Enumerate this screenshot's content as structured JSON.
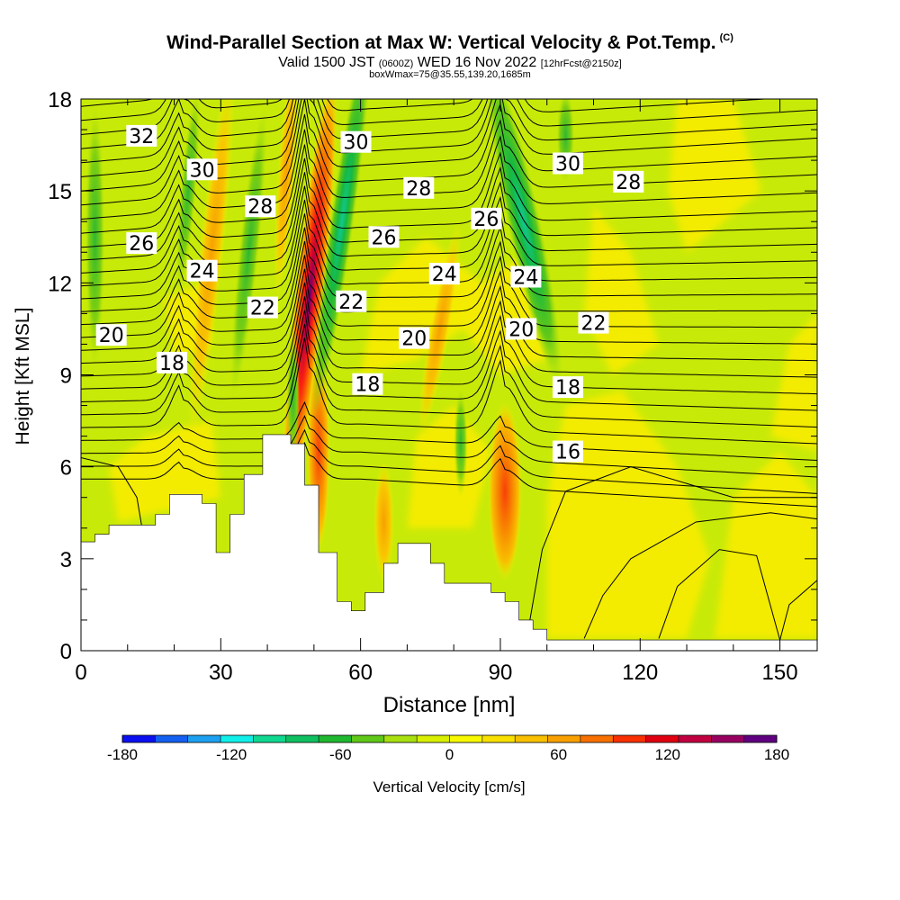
{
  "header": {
    "title": "Wind-Parallel Section at Max W: Vertical Velocity & Pot.Temp.",
    "copyright": "(C)",
    "valid_prefix": "Valid 1500 JST",
    "valid_utc": "(0600Z)",
    "valid_date": "WED 16 Nov 2022",
    "forecast": "[12hrFcst@2150z]",
    "box_info": "boxWmax=75@35.55,139.20,1685m"
  },
  "chart_data": {
    "type": "heatmap",
    "xlabel": "Distance [nm]",
    "ylabel": "Height [Kft MSL]",
    "xlim": [
      0,
      158
    ],
    "ylim": [
      0,
      18
    ],
    "x_ticks": [
      0,
      30,
      60,
      90,
      120,
      150
    ],
    "y_ticks": [
      0,
      3,
      6,
      9,
      12,
      15,
      18
    ],
    "colorbar": {
      "label": "Vertical Velocity [cm/s]",
      "range": [
        -180,
        180
      ],
      "tick_labels": [
        -180,
        -120,
        -60,
        0,
        60,
        120,
        180
      ],
      "colors": [
        "#0a10f0",
        "#1460f0",
        "#1ea0f0",
        "#10f0e8",
        "#10d890",
        "#10c060",
        "#20b830",
        "#60c818",
        "#a8e010",
        "#d8f000",
        "#f8f800",
        "#f8e000",
        "#f8c000",
        "#f8a000",
        "#f87000",
        "#f83000",
        "#e00010",
        "#c00040",
        "#980060",
        "#600080"
      ]
    },
    "theta_contour_labels": [
      {
        "text": "32",
        "x": 13.0,
        "y": 16.8
      },
      {
        "text": "30",
        "x": 26.0,
        "y": 15.7
      },
      {
        "text": "28",
        "x": 38.5,
        "y": 14.5
      },
      {
        "text": "26",
        "x": 13.0,
        "y": 13.3
      },
      {
        "text": "24",
        "x": 26.0,
        "y": 12.4
      },
      {
        "text": "22",
        "x": 39.0,
        "y": 11.2
      },
      {
        "text": "20",
        "x": 6.5,
        "y": 10.3
      },
      {
        "text": "18",
        "x": 19.5,
        "y": 9.4
      },
      {
        "text": "30",
        "x": 59.0,
        "y": 16.6
      },
      {
        "text": "28",
        "x": 72.5,
        "y": 15.1
      },
      {
        "text": "26",
        "x": 65.0,
        "y": 13.5
      },
      {
        "text": "24",
        "x": 78.0,
        "y": 12.3
      },
      {
        "text": "22",
        "x": 58.0,
        "y": 11.4
      },
      {
        "text": "20",
        "x": 71.5,
        "y": 10.2
      },
      {
        "text": "18",
        "x": 61.5,
        "y": 8.7
      },
      {
        "text": "26",
        "x": 87.0,
        "y": 14.1
      },
      {
        "text": "24",
        "x": 95.5,
        "y": 12.2
      },
      {
        "text": "20",
        "x": 94.5,
        "y": 10.5
      },
      {
        "text": "30",
        "x": 104.5,
        "y": 15.9
      },
      {
        "text": "28",
        "x": 117.5,
        "y": 15.3
      },
      {
        "text": "22",
        "x": 110.0,
        "y": 10.7
      },
      {
        "text": "18",
        "x": 104.5,
        "y": 8.6
      },
      {
        "text": "16",
        "x": 104.5,
        "y": 6.5
      }
    ],
    "terrain_profile": [
      [
        0,
        3.55
      ],
      [
        3,
        3.55
      ],
      [
        3,
        3.8
      ],
      [
        6,
        3.8
      ],
      [
        6,
        4.1
      ],
      [
        16,
        4.1
      ],
      [
        16,
        4.45
      ],
      [
        19,
        4.45
      ],
      [
        19,
        5.1
      ],
      [
        26,
        5.1
      ],
      [
        26,
        4.8
      ],
      [
        29,
        4.8
      ],
      [
        29,
        3.2
      ],
      [
        32,
        3.2
      ],
      [
        32,
        4.45
      ],
      [
        35,
        4.45
      ],
      [
        35,
        5.75
      ],
      [
        39,
        5.75
      ],
      [
        39,
        7.05
      ],
      [
        45,
        7.05
      ],
      [
        45,
        6.75
      ],
      [
        48,
        6.75
      ],
      [
        48,
        5.4
      ],
      [
        51,
        5.4
      ],
      [
        51,
        3.2
      ],
      [
        55,
        3.2
      ],
      [
        55,
        1.6
      ],
      [
        58,
        1.6
      ],
      [
        58,
        1.3
      ],
      [
        61,
        1.3
      ],
      [
        61,
        1.9
      ],
      [
        65,
        1.9
      ],
      [
        65,
        2.85
      ],
      [
        68,
        2.85
      ],
      [
        68,
        3.5
      ],
      [
        75,
        3.5
      ],
      [
        75,
        2.85
      ],
      [
        78,
        2.85
      ],
      [
        78,
        2.2
      ],
      [
        88,
        2.2
      ],
      [
        88,
        1.9
      ],
      [
        91,
        1.9
      ],
      [
        91,
        1.6
      ],
      [
        94,
        1.6
      ],
      [
        94,
        1.0
      ],
      [
        97,
        1.0
      ],
      [
        97,
        0.7
      ],
      [
        100,
        0.7
      ],
      [
        100,
        0.35
      ],
      [
        158,
        0.35
      ]
    ],
    "updraft_cores": [
      {
        "x": 49.0,
        "y_bottom": 4.5,
        "y_top": 18,
        "peak": 180
      },
      {
        "x": 91.0,
        "y_bottom": 3.0,
        "y_top": 8.0,
        "peak": 105
      },
      {
        "x": 28.0,
        "y_bottom": 5.5,
        "y_top": 18,
        "peak": 75
      },
      {
        "x": 46.0,
        "y_bottom": 11.0,
        "y_top": 18,
        "peak": 55
      }
    ],
    "downdraft_cores": [
      {
        "x": 56.0,
        "y_bottom": 8.5,
        "y_top": 18,
        "peak": -95
      },
      {
        "x": 95.0,
        "y_bottom": 10.0,
        "y_top": 18,
        "peak": -80
      },
      {
        "x": 36.0,
        "y_bottom": 8.0,
        "y_top": 18,
        "peak": -55
      },
      {
        "x": 3.0,
        "y_bottom": 9.0,
        "y_top": 18,
        "peak": -50
      }
    ]
  }
}
